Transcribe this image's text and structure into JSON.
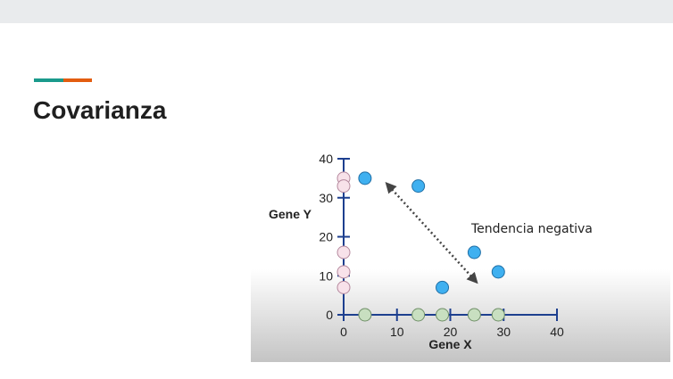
{
  "slide": {
    "title": "Covarianza"
  },
  "colors": {
    "accent_teal": "#1a9a8c",
    "accent_orange": "#e35d10",
    "blue_point": "#3fb0f0",
    "pink_point": "#f8e2ea",
    "green_point": "#c8dfc0"
  },
  "chart_data": {
    "type": "scatter",
    "xlabel": "Gene X",
    "ylabel": "Gene Y",
    "xlim": [
      0,
      40
    ],
    "ylim": [
      0,
      40
    ],
    "xticks": [
      0,
      10,
      20,
      30,
      40
    ],
    "yticks": [
      0,
      10,
      20,
      30,
      40
    ],
    "xtick_labels": [
      "0",
      "10",
      "20",
      "30",
      "40"
    ],
    "ytick_labels": [
      "0",
      "10",
      "20",
      "30",
      "40"
    ],
    "points": [
      {
        "x": 4,
        "y": 35
      },
      {
        "x": 14,
        "y": 33
      },
      {
        "x": 24.5,
        "y": 16
      },
      {
        "x": 29,
        "y": 11
      },
      {
        "x": 18.5,
        "y": 7
      }
    ],
    "projection_y_axis": [
      35,
      33,
      16,
      11,
      7
    ],
    "projection_x_axis": [
      4,
      14,
      18.5,
      24.5,
      29
    ],
    "annotation": {
      "text": "Tendencia negativa",
      "arrow": {
        "from": [
          8.5,
          33
        ],
        "to": [
          24.5,
          9
        ]
      }
    },
    "grid": false
  }
}
